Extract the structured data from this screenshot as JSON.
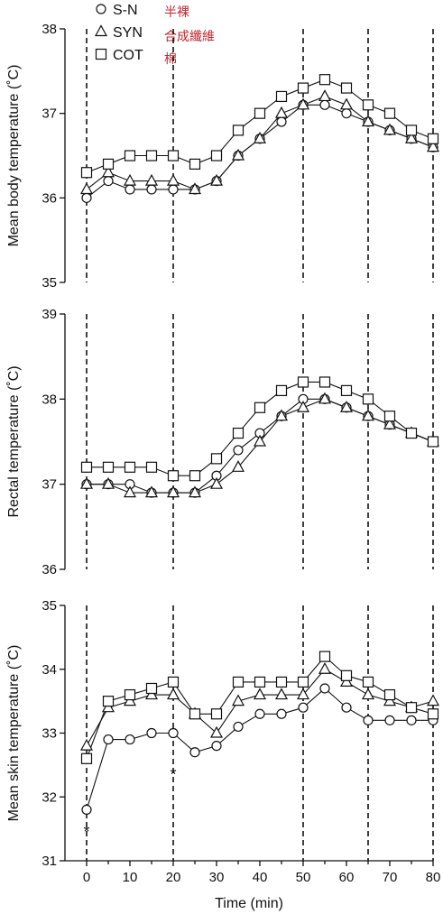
{
  "legend": [
    {
      "marker": "circle",
      "label": "S-N"
    },
    {
      "marker": "triangle",
      "label": "SYN"
    },
    {
      "marker": "square",
      "label": "COT"
    }
  ],
  "legend_notes": [
    "半裸",
    "合成纖維",
    "棉"
  ],
  "note_color": "#c0282d",
  "chart_data": [
    {
      "type": "line",
      "ylabel": "Mean body temperature (˚C)",
      "xlim": [
        -5,
        80
      ],
      "ylim": [
        35,
        38
      ],
      "yticks": [
        35,
        36,
        37,
        38
      ],
      "xticks": [
        0,
        10,
        20,
        30,
        40,
        50,
        60,
        70,
        80
      ],
      "vlines": [
        0,
        20,
        50,
        65,
        80
      ],
      "x": [
        0,
        5,
        10,
        15,
        20,
        25,
        30,
        35,
        40,
        45,
        50,
        55,
        60,
        65,
        70,
        75,
        80
      ],
      "series": [
        {
          "name": "S-N",
          "marker": "circle",
          "values": [
            36.0,
            36.2,
            36.1,
            36.1,
            36.1,
            36.1,
            36.2,
            36.5,
            36.7,
            36.9,
            37.1,
            37.1,
            37.0,
            36.9,
            36.8,
            36.7,
            36.6
          ]
        },
        {
          "name": "SYN",
          "marker": "triangle",
          "values": [
            36.1,
            36.3,
            36.2,
            36.2,
            36.2,
            36.1,
            36.2,
            36.5,
            36.7,
            37.0,
            37.1,
            37.2,
            37.1,
            36.9,
            36.8,
            36.7,
            36.6
          ]
        },
        {
          "name": "COT",
          "marker": "square",
          "values": [
            36.3,
            36.4,
            36.5,
            36.5,
            36.5,
            36.4,
            36.5,
            36.8,
            37.0,
            37.2,
            37.3,
            37.4,
            37.3,
            37.1,
            37.0,
            36.8,
            36.7
          ]
        }
      ],
      "annotations": []
    },
    {
      "type": "line",
      "ylabel": "Rectal temperature (˚C)",
      "xlim": [
        -5,
        80
      ],
      "ylim": [
        36,
        39
      ],
      "yticks": [
        36,
        37,
        38,
        39
      ],
      "xticks": [
        0,
        10,
        20,
        30,
        40,
        50,
        60,
        70,
        80
      ],
      "vlines": [
        0,
        20,
        50,
        65,
        80
      ],
      "x": [
        0,
        5,
        10,
        15,
        20,
        25,
        30,
        35,
        40,
        45,
        50,
        55,
        60,
        65,
        70,
        75,
        80
      ],
      "series": [
        {
          "name": "S-N",
          "marker": "circle",
          "values": [
            37.0,
            37.0,
            37.0,
            36.9,
            36.9,
            36.9,
            37.1,
            37.4,
            37.6,
            37.8,
            38.0,
            38.0,
            37.9,
            37.8,
            37.7,
            37.6,
            37.5
          ]
        },
        {
          "name": "SYN",
          "marker": "triangle",
          "values": [
            37.0,
            37.0,
            36.9,
            36.9,
            36.9,
            36.9,
            37.0,
            37.2,
            37.5,
            37.8,
            37.9,
            38.0,
            37.9,
            37.8,
            37.7,
            37.6,
            37.5
          ]
        },
        {
          "name": "COT",
          "marker": "square",
          "values": [
            37.2,
            37.2,
            37.2,
            37.2,
            37.1,
            37.1,
            37.3,
            37.6,
            37.9,
            38.1,
            38.2,
            38.2,
            38.1,
            38.0,
            37.8,
            37.6,
            37.5
          ]
        }
      ],
      "annotations": []
    },
    {
      "type": "line",
      "ylabel": "Mean skin temperature (˚C)",
      "xlabel": "Time (min)",
      "xlim": [
        -5,
        80
      ],
      "ylim": [
        31,
        35
      ],
      "yticks": [
        31,
        32,
        33,
        34,
        35
      ],
      "xticks": [
        0,
        10,
        20,
        30,
        40,
        50,
        60,
        70,
        80
      ],
      "vlines": [
        0,
        20,
        50,
        65,
        80
      ],
      "x": [
        0,
        5,
        10,
        15,
        20,
        25,
        30,
        35,
        40,
        45,
        50,
        55,
        60,
        65,
        70,
        75,
        80
      ],
      "series": [
        {
          "name": "S-N",
          "marker": "circle",
          "values": [
            31.8,
            32.9,
            32.9,
            33.0,
            33.0,
            32.7,
            32.8,
            33.1,
            33.3,
            33.3,
            33.4,
            33.7,
            33.4,
            33.2,
            33.2,
            33.2,
            33.2
          ]
        },
        {
          "name": "SYN",
          "marker": "triangle",
          "values": [
            32.8,
            33.4,
            33.5,
            33.6,
            33.6,
            33.3,
            33.0,
            33.5,
            33.6,
            33.6,
            33.6,
            34.0,
            33.8,
            33.6,
            33.5,
            33.4,
            33.5
          ]
        },
        {
          "name": "COT",
          "marker": "square",
          "values": [
            32.6,
            33.5,
            33.6,
            33.7,
            33.8,
            33.3,
            33.3,
            33.8,
            33.8,
            33.8,
            33.8,
            34.2,
            33.9,
            33.8,
            33.6,
            33.4,
            33.3
          ]
        }
      ],
      "annotations": [
        {
          "text": "*",
          "x": 0,
          "y": 31.45
        },
        {
          "text": "*",
          "x": 20,
          "y": 32.35
        }
      ]
    }
  ]
}
